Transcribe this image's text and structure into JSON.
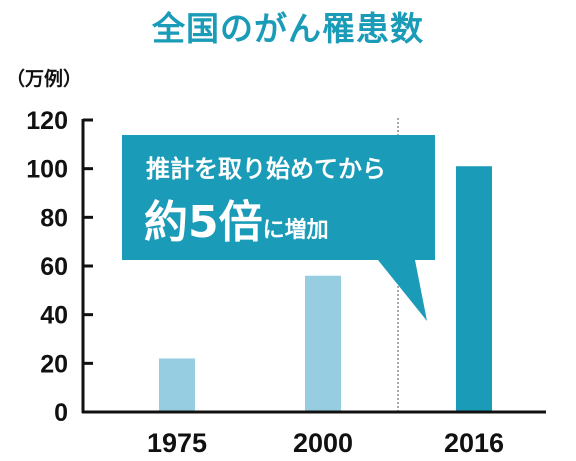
{
  "chart_data": {
    "type": "bar",
    "title": "全国のがん罹患数",
    "ylabel": "（万例）",
    "categories": [
      "1975",
      "2000",
      "2016"
    ],
    "values": [
      22,
      56,
      101
    ],
    "ylim": [
      0,
      120
    ],
    "yticks": [
      "0",
      "20",
      "40",
      "60",
      "80",
      "100",
      "120"
    ],
    "grid": false,
    "colors": {
      "light_bar": "#96cde0",
      "dark_bar": "#1a9bb7",
      "callout": "#1a9bb7",
      "title": "#1a9bb7"
    },
    "annotation": {
      "line1": "推計を取り始めてから",
      "emphasis": "約5倍",
      "suffix": "に増加"
    }
  }
}
